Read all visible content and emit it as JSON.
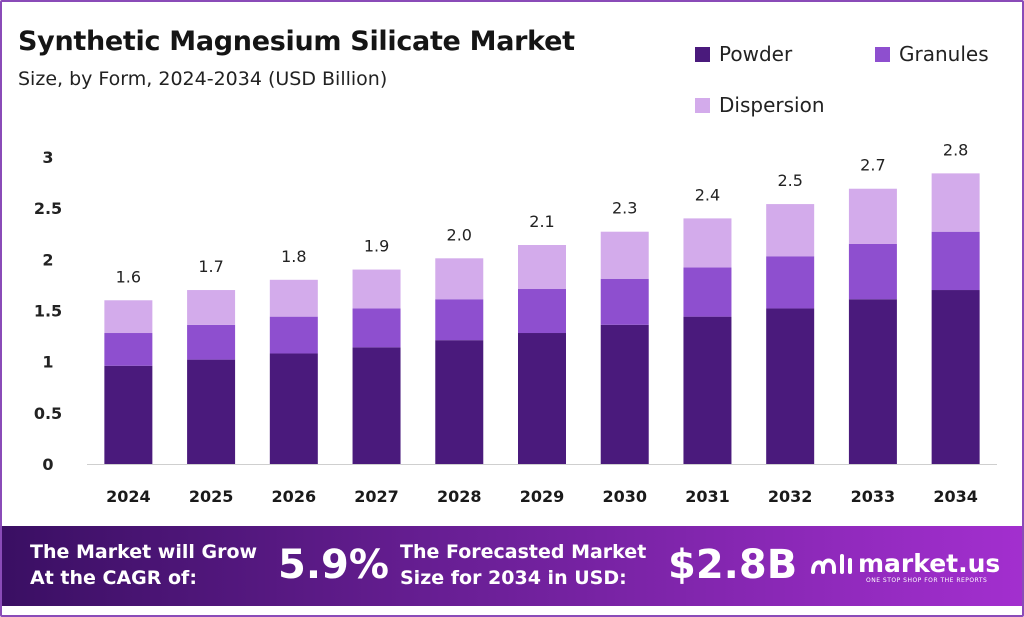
{
  "header": {
    "title": "Synthetic Magnesium Silicate Market",
    "subtitle": "Size, by Form, 2024-2034 (USD Billion)"
  },
  "legend": [
    {
      "label": "Powder",
      "color": "#4a1a7c"
    },
    {
      "label": "Granules",
      "color": "#8e4fcf"
    },
    {
      "label": "Dispersion",
      "color": "#d3abeb"
    }
  ],
  "chart_data": {
    "type": "bar",
    "stacked": true,
    "title": "Synthetic Magnesium Silicate Market",
    "subtitle": "Size, by Form, 2024-2034 (USD Billion)",
    "categories": [
      "2024",
      "2025",
      "2026",
      "2027",
      "2028",
      "2029",
      "2030",
      "2031",
      "2032",
      "2033",
      "2034"
    ],
    "series": [
      {
        "name": "Powder",
        "color": "#4a1a7c",
        "values": [
          0.96,
          1.02,
          1.08,
          1.14,
          1.21,
          1.28,
          1.36,
          1.44,
          1.52,
          1.61,
          1.7
        ]
      },
      {
        "name": "Granules",
        "color": "#8e4fcf",
        "values": [
          0.32,
          0.34,
          0.36,
          0.38,
          0.4,
          0.43,
          0.45,
          0.48,
          0.51,
          0.54,
          0.57
        ]
      },
      {
        "name": "Dispersion",
        "color": "#d3abeb",
        "values": [
          0.32,
          0.34,
          0.36,
          0.38,
          0.4,
          0.43,
          0.46,
          0.48,
          0.51,
          0.54,
          0.57
        ]
      }
    ],
    "totals": [
      "1.6",
      "1.7",
      "1.8",
      "1.9",
      "2.0",
      "2.1",
      "2.3",
      "2.4",
      "2.5",
      "2.7",
      "2.8"
    ],
    "yticks": [
      "0",
      "0.5",
      "1",
      "1.5",
      "2",
      "2.5",
      "3"
    ],
    "ylim": [
      0,
      3
    ],
    "xlabel": "",
    "ylabel": "",
    "legend_position": "top-right"
  },
  "footer": {
    "cagr_text_line1": "The Market will Grow",
    "cagr_text_line2": "At the CAGR of:",
    "cagr_value": "5.9%",
    "forecast_text_line1": "The Forecasted Market",
    "forecast_text_line2": "Size for 2034 in USD:",
    "forecast_value": "$2.8B",
    "brand_name": "market.us",
    "brand_tagline": "ONE STOP SHOP FOR THE REPORTS"
  }
}
